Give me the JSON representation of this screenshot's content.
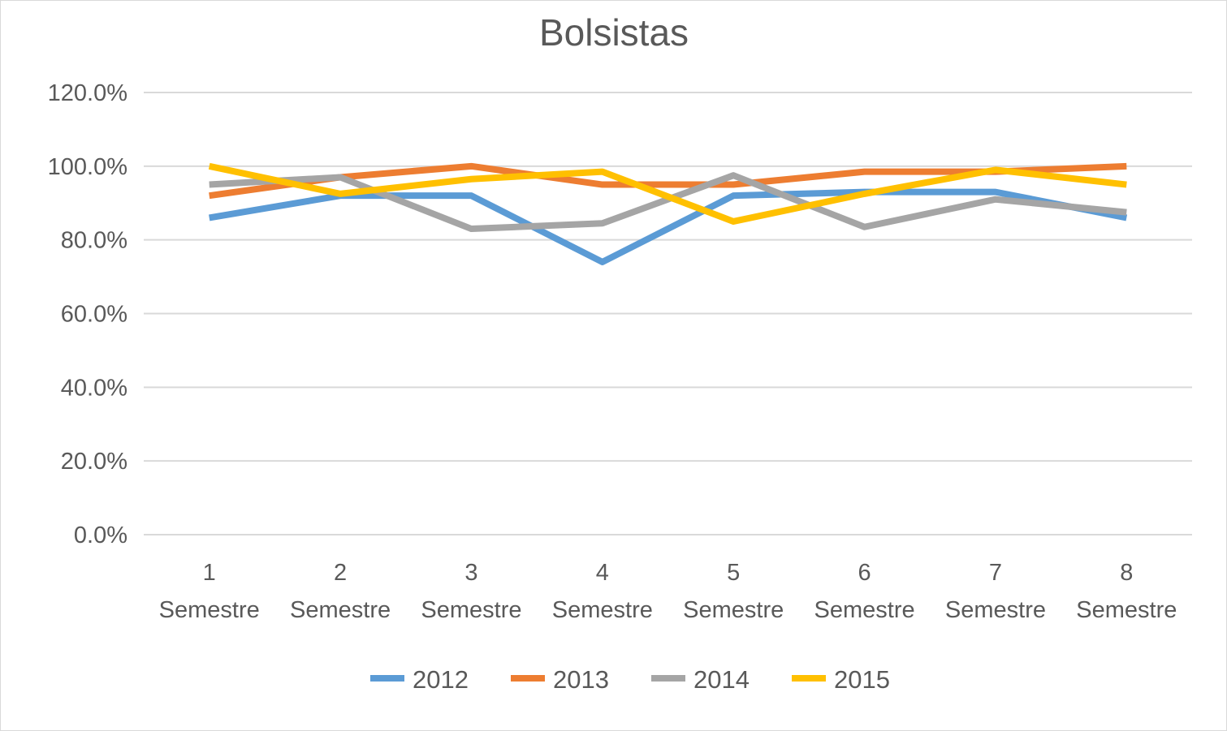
{
  "chart_data": {
    "type": "line",
    "title": "Bolsistas",
    "xlabel": "",
    "ylabel": "",
    "categories": [
      [
        "1",
        "Semestre"
      ],
      [
        "2",
        "Semestre"
      ],
      [
        "3",
        "Semestre"
      ],
      [
        "4",
        "Semestre"
      ],
      [
        "5",
        "Semestre"
      ],
      [
        "6",
        "Semestre"
      ],
      [
        "7",
        "Semestre"
      ],
      [
        "8",
        "Semestre"
      ]
    ],
    "ylim": [
      0,
      120
    ],
    "yticks": [
      0,
      20,
      40,
      60,
      80,
      100,
      120
    ],
    "ytick_labels": [
      "0.0%",
      "20.0%",
      "40.0%",
      "60.0%",
      "80.0%",
      "100.0%",
      "120.0%"
    ],
    "grid": true,
    "legend_position": "bottom",
    "series": [
      {
        "name": "2012",
        "color": "#5b9bd5",
        "values": [
          86,
          92,
          92,
          74,
          92,
          93,
          93,
          86
        ]
      },
      {
        "name": "2013",
        "color": "#ed7d31",
        "values": [
          92,
          97,
          100,
          95,
          95,
          98.5,
          98.5,
          100
        ]
      },
      {
        "name": "2014",
        "color": "#a5a5a5",
        "values": [
          95,
          97,
          83,
          84.5,
          97.5,
          83.5,
          91,
          87.5
        ]
      },
      {
        "name": "2015",
        "color": "#ffc000",
        "values": [
          100,
          92.5,
          96.5,
          98.5,
          85,
          92.5,
          99,
          95
        ]
      }
    ]
  }
}
